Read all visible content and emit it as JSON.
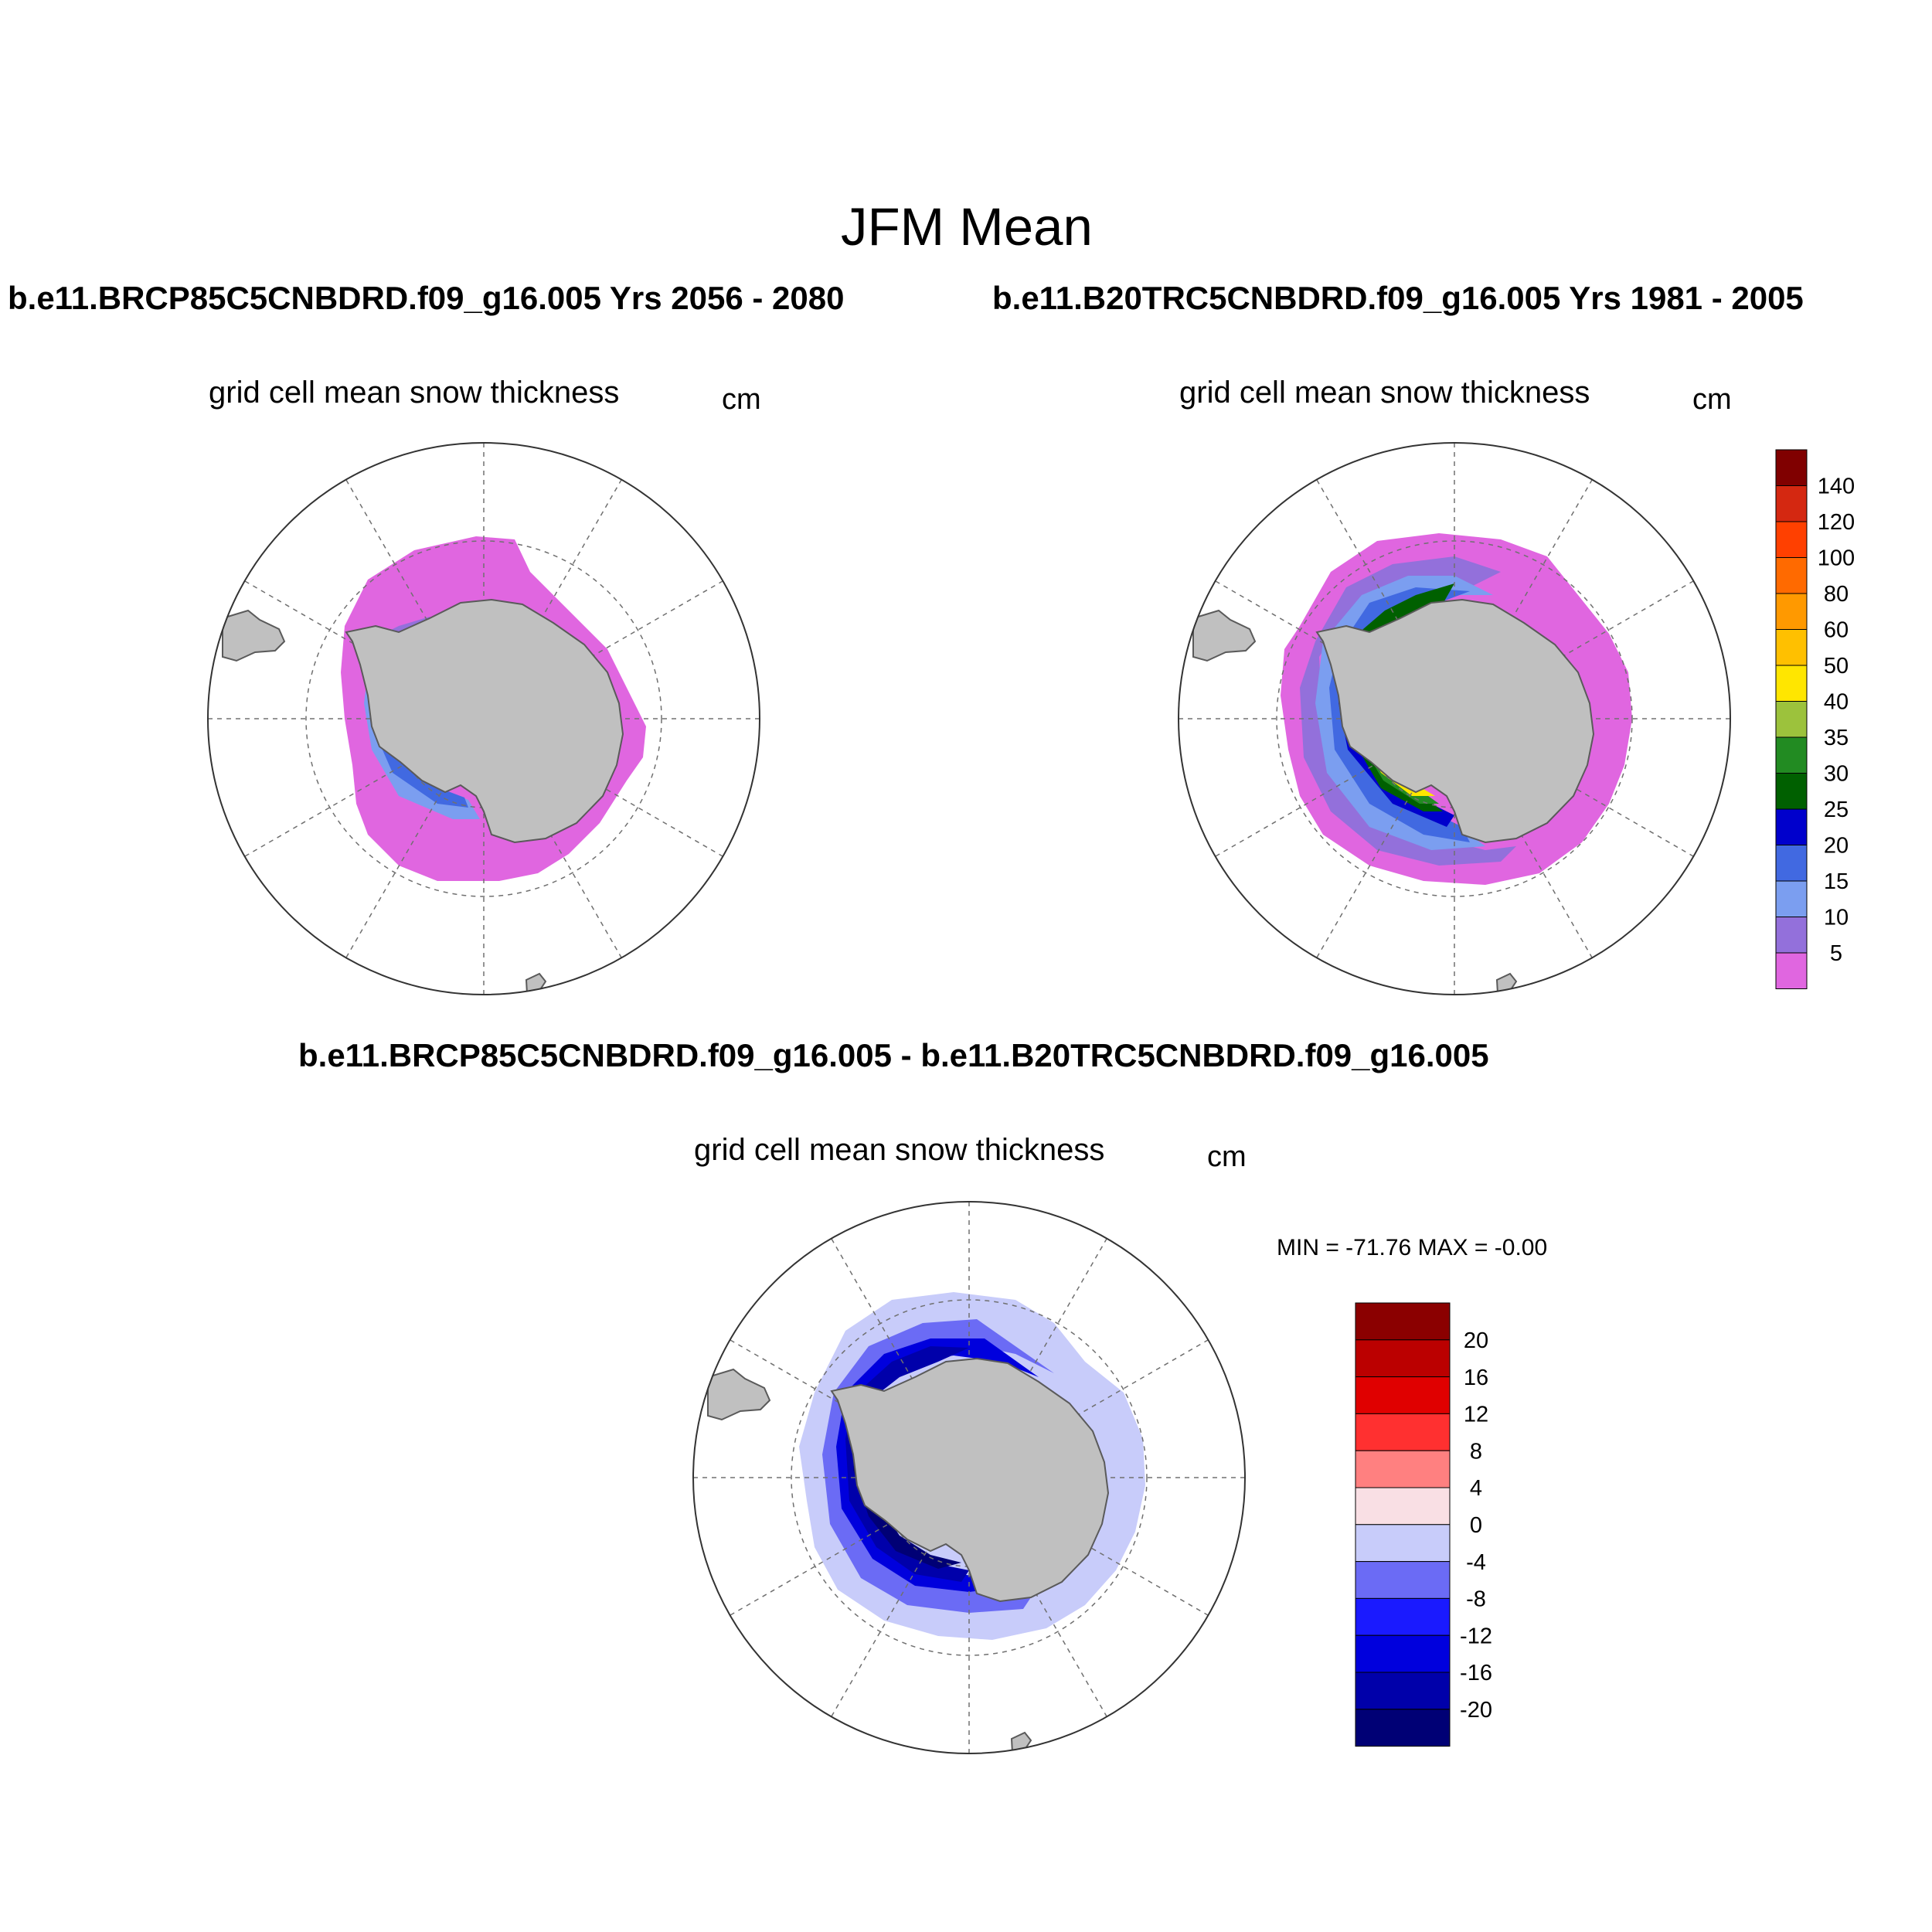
{
  "figure": {
    "title": "JFM Mean",
    "case_left": "b.e11.BRCP85C5CNBDRD.f09_g16.005  Yrs 2056 - 2080",
    "case_right": "b.e11.B20TRC5CNBDRD.f09_g16.005  Yrs 1981 - 2005",
    "case_diff": "b.e11.BRCP85C5CNBDRD.f09_g16.005 - b.e11.B20TRC5CNBDRD.f09_g16.005"
  },
  "panels": {
    "left": {
      "variable": "grid cell mean snow thickness",
      "units": "cm"
    },
    "right": {
      "variable": "grid cell mean snow thickness",
      "units": "cm"
    },
    "diff": {
      "variable": "grid cell mean snow thickness",
      "units": "cm",
      "stats": "MIN = -71.76 MAX =  -0.00"
    }
  },
  "colorbars": {
    "abs": {
      "labels": [
        "140",
        "120",
        "100",
        "80",
        "60",
        "50",
        "40",
        "35",
        "30",
        "25",
        "20",
        "15",
        "10",
        "5"
      ],
      "colors": [
        "#800000",
        "#d42811",
        "#ff4000",
        "#ff6a00",
        "#ff9900",
        "#ffc000",
        "#ffe600",
        "#9cc23c",
        "#228b22",
        "#006000",
        "#0000cc",
        "#4169e1",
        "#7b9ef0",
        "#9370db",
        "#e066e0"
      ]
    },
    "diff": {
      "labels": [
        "20",
        "16",
        "12",
        "8",
        "4",
        "0",
        "-4",
        "-8",
        "-12",
        "-16",
        "-20"
      ],
      "colors": [
        "#8b0000",
        "#bb0000",
        "#e00000",
        "#ff3030",
        "#ff8080",
        "#f9dfe4",
        "#c8ccfa",
        "#6b6bf5",
        "#1a1aff",
        "#0000dd",
        "#0000aa",
        "#000075"
      ]
    }
  },
  "map_colors": {
    "land": "#c0c0c0",
    "coast": "#5a5a5a",
    "grid": "#707070"
  }
}
